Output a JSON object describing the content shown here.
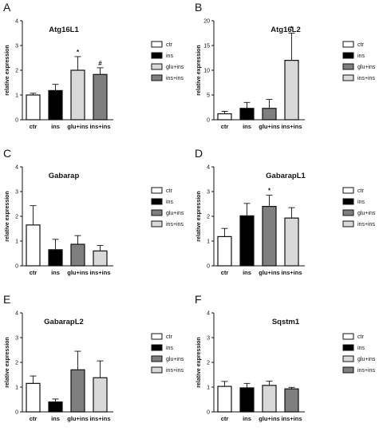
{
  "legend_colors": {
    "ctr": "#ffffff",
    "ins": "#000000",
    "glu+ins_dark": "#7f7f7f",
    "light": "#d9d9d9"
  },
  "chart_data": [
    {
      "letter": "A",
      "title": "Atg16L1",
      "type": "bar",
      "ylabel": "relative expression",
      "ylim": [
        0,
        4
      ],
      "yticks": [
        "0",
        "1",
        "2",
        "3",
        "4"
      ],
      "categories": [
        "ctr",
        "ins",
        "glu+ins",
        "ins+ins"
      ],
      "values": [
        1.0,
        1.18,
        2.0,
        1.83
      ],
      "errors": [
        0.07,
        0.25,
        0.55,
        0.27
      ],
      "colors": [
        "#ffffff",
        "#000000",
        "#d9d9d9",
        "#7f7f7f"
      ],
      "annotations": [
        "",
        "",
        "*",
        "#"
      ],
      "legend": [
        {
          "label": "ctr",
          "color": "#ffffff"
        },
        {
          "label": "ins",
          "color": "#000000"
        },
        {
          "label": "glu+ins",
          "color": "#d9d9d9"
        },
        {
          "label": "ins+ins",
          "color": "#7f7f7f"
        }
      ]
    },
    {
      "letter": "B",
      "title": "Atg16L2",
      "type": "bar",
      "ylabel": "relative expression",
      "ylim": [
        0,
        20
      ],
      "yticks": [
        "0",
        "5",
        "10",
        "15",
        "20"
      ],
      "categories": [
        "ctr",
        "ins",
        "glu+ins",
        "ins+ins"
      ],
      "values": [
        1.2,
        2.3,
        2.3,
        12.0
      ],
      "errors": [
        0.5,
        1.2,
        1.8,
        5.5
      ],
      "colors": [
        "#ffffff",
        "#000000",
        "#7f7f7f",
        "#d9d9d9"
      ],
      "annotations": [
        "",
        "",
        "",
        "*"
      ],
      "legend": [
        {
          "label": "ctr",
          "color": "#ffffff"
        },
        {
          "label": "ins",
          "color": "#000000"
        },
        {
          "label": "glu+ins",
          "color": "#7f7f7f"
        },
        {
          "label": "ins+ins",
          "color": "#d9d9d9"
        }
      ]
    },
    {
      "letter": "C",
      "title": "Gabarap",
      "type": "bar",
      "ylabel": "relative expression",
      "ylim": [
        0,
        4
      ],
      "yticks": [
        "0",
        "1",
        "2",
        "3",
        "4"
      ],
      "categories": [
        "ctr",
        "ins",
        "glu+ins",
        "ins+ins"
      ],
      "values": [
        1.65,
        0.65,
        0.87,
        0.6
      ],
      "errors": [
        0.78,
        0.42,
        0.35,
        0.22
      ],
      "colors": [
        "#ffffff",
        "#000000",
        "#7f7f7f",
        "#d9d9d9"
      ],
      "annotations": [
        "",
        "",
        "",
        ""
      ],
      "legend": [
        {
          "label": "ctr",
          "color": "#ffffff"
        },
        {
          "label": "ins",
          "color": "#000000"
        },
        {
          "label": "glu+ins",
          "color": "#7f7f7f"
        },
        {
          "label": "ins+ins",
          "color": "#d9d9d9"
        }
      ]
    },
    {
      "letter": "D",
      "title": "GabarapL1",
      "type": "bar",
      "ylabel": "relative expression",
      "ylim": [
        0,
        4
      ],
      "yticks": [
        "0",
        "1",
        "2",
        "3",
        "4"
      ],
      "categories": [
        "ctr",
        "ins",
        "glu+ins",
        "ins+ins"
      ],
      "values": [
        1.18,
        2.02,
        2.4,
        1.93
      ],
      "errors": [
        0.33,
        0.5,
        0.45,
        0.42
      ],
      "colors": [
        "#ffffff",
        "#000000",
        "#7f7f7f",
        "#d9d9d9"
      ],
      "annotations": [
        "",
        "",
        "*",
        ""
      ],
      "legend": [
        {
          "label": "ctr",
          "color": "#ffffff"
        },
        {
          "label": "ins",
          "color": "#000000"
        },
        {
          "label": "glu+ins",
          "color": "#7f7f7f"
        },
        {
          "label": "ins+ins",
          "color": "#d9d9d9"
        }
      ]
    },
    {
      "letter": "E",
      "title": "GabarapL2",
      "type": "bar",
      "ylabel": "relative expression",
      "ylim": [
        0,
        4
      ],
      "yticks": [
        "0",
        "1",
        "2",
        "3",
        "4"
      ],
      "categories": [
        "ctr",
        "ins",
        "glu+ins",
        "ins+ins"
      ],
      "values": [
        1.15,
        0.4,
        1.7,
        1.38
      ],
      "errors": [
        0.3,
        0.12,
        0.75,
        0.68
      ],
      "colors": [
        "#ffffff",
        "#000000",
        "#7f7f7f",
        "#d9d9d9"
      ],
      "annotations": [
        "",
        "",
        "",
        ""
      ],
      "legend": [
        {
          "label": "ctr",
          "color": "#ffffff"
        },
        {
          "label": "ins",
          "color": "#000000"
        },
        {
          "label": "glu+ins",
          "color": "#7f7f7f"
        },
        {
          "label": "ins+ins",
          "color": "#d9d9d9"
        }
      ]
    },
    {
      "letter": "F",
      "title": "Sqstm1",
      "type": "bar",
      "ylabel": "relative expression",
      "ylim": [
        0,
        4
      ],
      "yticks": [
        "0",
        "1",
        "2",
        "3",
        "4"
      ],
      "categories": [
        "ctr",
        "ins",
        "glu+ins",
        "ins+ins"
      ],
      "values": [
        1.03,
        0.97,
        1.07,
        0.93
      ],
      "errors": [
        0.2,
        0.18,
        0.17,
        0.06
      ],
      "colors": [
        "#ffffff",
        "#000000",
        "#d9d9d9",
        "#7f7f7f"
      ],
      "annotations": [
        "",
        "",
        "",
        ""
      ],
      "legend": [
        {
          "label": "ctr",
          "color": "#ffffff"
        },
        {
          "label": "ins",
          "color": "#000000"
        },
        {
          "label": "glu+ins",
          "color": "#d9d9d9"
        },
        {
          "label": "ins+ins",
          "color": "#7f7f7f"
        }
      ]
    }
  ]
}
